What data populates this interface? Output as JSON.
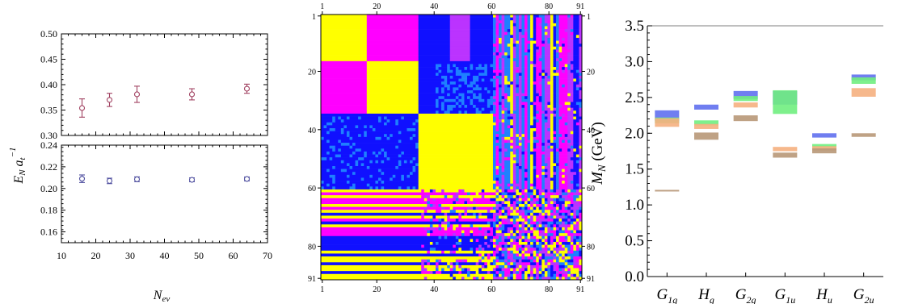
{
  "colors": {
    "energy_upper": "#a04060",
    "energy_lower": "#5050a0",
    "matrix_yellow": "#ffff00",
    "matrix_magenta": "#ff00ff",
    "matrix_purple": "#bb33ff",
    "matrix_blue": "#1010ff",
    "matrix_azure": "#1e80ff",
    "mass_blue": "#6070ee",
    "mass_green": "#70ee80",
    "mass_orange": "#f5b080",
    "mass_tan": "#b89878"
  },
  "chart_data": [
    {
      "type": "scatter",
      "xlabel_main": "N",
      "xlabel_sub": "ev",
      "ylabel_main": "E",
      "ylabel_sub1": "N",
      "ylabel_var": "a",
      "ylabel_sub2": "t",
      "ylabel_sup": "−1",
      "xlim": [
        10,
        70
      ],
      "xticks": [
        "10",
        "20",
        "30",
        "40",
        "50",
        "60",
        "70"
      ],
      "panels": [
        {
          "ylim": [
            0.3,
            0.5
          ],
          "yticks": [
            "0.30",
            "0.35",
            "0.40",
            "0.45",
            "0.50"
          ],
          "points": [
            {
              "x": 16,
              "y": 0.354,
              "err": 0.018
            },
            {
              "x": 24,
              "y": 0.37,
              "err": 0.013
            },
            {
              "x": 32,
              "y": 0.381,
              "err": 0.016
            },
            {
              "x": 48,
              "y": 0.381,
              "err": 0.011
            },
            {
              "x": 64,
              "y": 0.392,
              "err": 0.009
            }
          ]
        },
        {
          "ylim": [
            0.15,
            0.24
          ],
          "yticks": [
            "0.16",
            "0.18",
            "0.20",
            "0.22",
            "0.24"
          ],
          "points": [
            {
              "x": 16,
              "y": 0.209,
              "err": 0.0035
            },
            {
              "x": 24,
              "y": 0.207,
              "err": 0.0025
            },
            {
              "x": 32,
              "y": 0.2085,
              "err": 0.0022
            },
            {
              "x": 48,
              "y": 0.208,
              "err": 0.0018
            },
            {
              "x": 64,
              "y": 0.2088,
              "err": 0.0018
            }
          ]
        }
      ]
    },
    {
      "type": "heatmap",
      "size": 91,
      "ticks": [
        "1",
        "20",
        "40",
        "60",
        "80",
        "91"
      ],
      "tick_values": [
        1,
        20,
        40,
        60,
        80,
        91
      ],
      "blocks": [
        {
          "r": [
            1,
            16
          ],
          "c": [
            1,
            16
          ],
          "color": "matrix_yellow"
        },
        {
          "r": [
            1,
            16
          ],
          "c": [
            17,
            34
          ],
          "color": "matrix_magenta"
        },
        {
          "r": [
            1,
            16
          ],
          "c": [
            35,
            60
          ],
          "color": "matrix_blue"
        },
        {
          "r": [
            17,
            34
          ],
          "c": [
            1,
            16
          ],
          "color": "matrix_magenta"
        },
        {
          "r": [
            17,
            34
          ],
          "c": [
            17,
            34
          ],
          "color": "matrix_yellow"
        },
        {
          "r": [
            17,
            34
          ],
          "c": [
            35,
            60
          ],
          "color": "matrix_blue"
        },
        {
          "r": [
            35,
            60
          ],
          "c": [
            1,
            16
          ],
          "color": "matrix_blue"
        },
        {
          "r": [
            35,
            60
          ],
          "c": [
            17,
            34
          ],
          "color": "matrix_blue"
        },
        {
          "r": [
            35,
            60
          ],
          "c": [
            35,
            60
          ],
          "color": "matrix_yellow"
        }
      ]
    },
    {
      "type": "bar",
      "ylabel_main": "M",
      "ylabel_sub": "N",
      "ylabel_unit": " (GeV)",
      "ylim": [
        0.0,
        3.5
      ],
      "yticks": [
        "0.0",
        "0.5",
        "1.0",
        "1.5",
        "2.0",
        "2.5",
        "3.0",
        "3.5"
      ],
      "categories": [
        {
          "main": "G",
          "sub": "1g"
        },
        {
          "main": "H",
          "sub": "g"
        },
        {
          "main": "G",
          "sub": "2g"
        },
        {
          "main": "G",
          "sub": "1u"
        },
        {
          "main": "H",
          "sub": "u"
        },
        {
          "main": "G",
          "sub": "2u"
        }
      ],
      "levels": [
        [
          {
            "low": 2.17,
            "high": 2.32,
            "color": "mass_blue"
          },
          {
            "low": 2.14,
            "high": 2.22,
            "color": "mass_green"
          },
          {
            "low": 2.09,
            "high": 2.21,
            "color": "mass_orange"
          },
          {
            "low": 1.19,
            "high": 1.21,
            "color": "mass_tan"
          }
        ],
        [
          {
            "low": 2.33,
            "high": 2.4,
            "color": "mass_blue"
          },
          {
            "low": 2.11,
            "high": 2.18,
            "color": "mass_green"
          },
          {
            "low": 2.06,
            "high": 2.13,
            "color": "mass_orange"
          },
          {
            "low": 1.91,
            "high": 2.01,
            "color": "mass_tan"
          }
        ],
        [
          {
            "low": 2.48,
            "high": 2.59,
            "color": "mass_blue"
          },
          {
            "low": 2.45,
            "high": 2.52,
            "color": "mass_green"
          },
          {
            "low": 2.36,
            "high": 2.43,
            "color": "mass_orange"
          },
          {
            "low": 2.17,
            "high": 2.25,
            "color": "mass_tan"
          }
        ],
        [
          {
            "low": 2.4,
            "high": 2.59,
            "color": "mass_blue"
          },
          {
            "low": 2.27,
            "high": 2.6,
            "color": "mass_green"
          },
          {
            "low": 1.75,
            "high": 1.81,
            "color": "mass_orange"
          },
          {
            "low": 1.66,
            "high": 1.73,
            "color": "mass_tan"
          }
        ],
        [
          {
            "low": 1.94,
            "high": 2.0,
            "color": "mass_blue"
          },
          {
            "low": 1.8,
            "high": 1.85,
            "color": "mass_green"
          },
          {
            "low": 1.76,
            "high": 1.82,
            "color": "mass_orange"
          },
          {
            "low": 1.72,
            "high": 1.79,
            "color": "mass_tan"
          }
        ],
        [
          {
            "low": 2.74,
            "high": 2.82,
            "color": "mass_blue"
          },
          {
            "low": 2.69,
            "high": 2.78,
            "color": "mass_green"
          },
          {
            "low": 2.51,
            "high": 2.63,
            "color": "mass_orange"
          },
          {
            "low": 1.95,
            "high": 2.0,
            "color": "mass_tan"
          }
        ]
      ]
    }
  ]
}
